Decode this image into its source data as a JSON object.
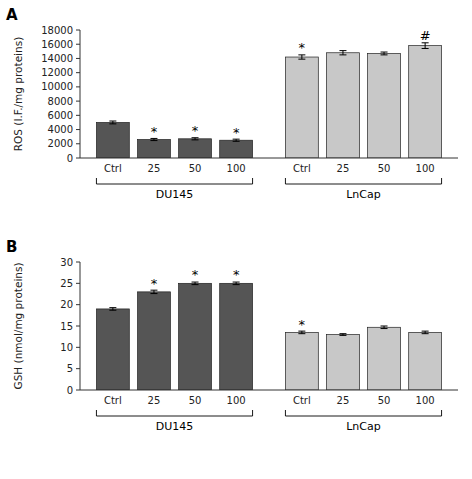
{
  "chart_data": [
    {
      "type": "bar",
      "title": "A",
      "categories": [
        "Ctrl",
        "25",
        "50",
        "100",
        "Ctrl",
        "25",
        "50",
        "100"
      ],
      "values": [
        5000,
        2600,
        2700,
        2500,
        14200,
        14800,
        14700,
        15800
      ],
      "errors": [
        200,
        150,
        150,
        150,
        300,
        300,
        200,
        400
      ],
      "colors": [
        "#555555",
        "#555555",
        "#555555",
        "#555555",
        "#c8c8c8",
        "#c8c8c8",
        "#c8c8c8",
        "#c8c8c8"
      ],
      "ylabel": "ROS (I.F./mg proteins)",
      "ylim": [
        0,
        18000
      ],
      "yticks": [
        0,
        2000,
        4000,
        6000,
        8000,
        10000,
        12000,
        14000,
        16000,
        18000
      ],
      "group_labels": [
        "DU145",
        "LnCap"
      ],
      "annotations": [
        {
          "index": 1,
          "text": "*"
        },
        {
          "index": 2,
          "text": "*"
        },
        {
          "index": 3,
          "text": "*"
        },
        {
          "index": 4,
          "text": "*"
        },
        {
          "index": 7,
          "text": "#"
        }
      ],
      "grid": false
    },
    {
      "type": "bar",
      "title": "B",
      "categories": [
        "Ctrl",
        "25",
        "50",
        "100",
        "Ctrl",
        "25",
        "50",
        "100"
      ],
      "values": [
        19.0,
        23.0,
        25.0,
        25.0,
        13.5,
        13.0,
        14.7,
        13.5
      ],
      "errors": [
        0.3,
        0.4,
        0.3,
        0.3,
        0.3,
        0.2,
        0.3,
        0.3
      ],
      "colors": [
        "#555555",
        "#555555",
        "#555555",
        "#555555",
        "#c8c8c8",
        "#c8c8c8",
        "#c8c8c8",
        "#c8c8c8"
      ],
      "ylabel": "GSH (nmol/mg proteins)",
      "ylim": [
        0,
        30
      ],
      "yticks": [
        0,
        5,
        10,
        15,
        20,
        25,
        30
      ],
      "group_labels": [
        "DU145",
        "LnCap"
      ],
      "annotations": [
        {
          "index": 1,
          "text": "*"
        },
        {
          "index": 2,
          "text": "*"
        },
        {
          "index": 3,
          "text": "*"
        },
        {
          "index": 4,
          "text": "*"
        }
      ],
      "grid": false
    }
  ]
}
